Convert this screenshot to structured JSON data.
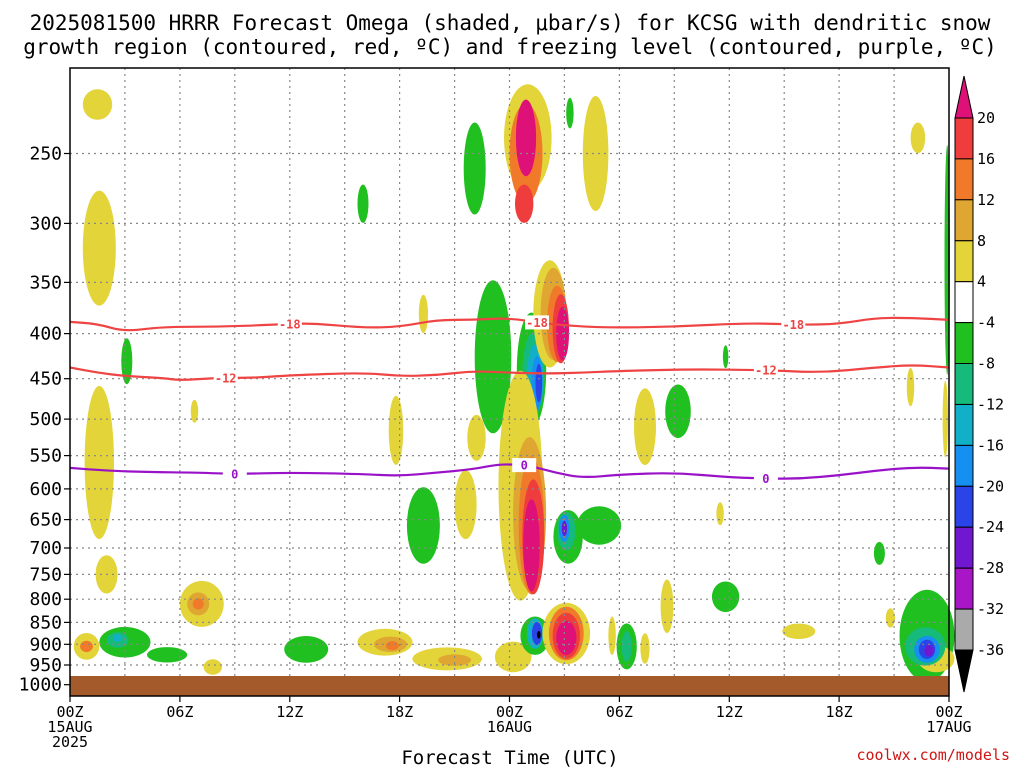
{
  "title": {
    "line1": "2025081500 HRRR Forecast Omega (shaded, μbar/s) for KCSG with dendritic snow",
    "line2": "growth region (contoured, red, ºC) and freezing level (contoured, purple, ºC)"
  },
  "credit": "coolwx.com/models",
  "colors": {
    "isotherm": "#ee4444",
    "freezing_level": "#9a12c8",
    "ground": "#a55a2c",
    "grid": "#888888"
  },
  "chart_data": {
    "type": "heatmap",
    "title": "2025081500 HRRR Forecast Omega (shaded, μbar/s) for KCSG with dendritic snow growth region (contoured, red, ºC) and freezing level (contoured, purple, ºC)",
    "xlabel": "Forecast Time (UTC)",
    "ylabel": "",
    "x_unit": "forecast hours from 2025-08-15 00Z",
    "y_unit": "hPa",
    "xlim": [
      0,
      48
    ],
    "ylim": [
      1030,
      200
    ],
    "y_scale": "log-pressure",
    "grid": true,
    "y_ticks": [
      250,
      300,
      350,
      400,
      450,
      500,
      550,
      600,
      650,
      700,
      750,
      800,
      850,
      900,
      950,
      1000
    ],
    "x_ticks": [
      {
        "hour": 0,
        "lines": [
          "00Z",
          "15AUG",
          "2025"
        ]
      },
      {
        "hour": 6,
        "lines": [
          "06Z"
        ]
      },
      {
        "hour": 12,
        "lines": [
          "12Z"
        ]
      },
      {
        "hour": 18,
        "lines": [
          "18Z"
        ]
      },
      {
        "hour": 24,
        "lines": [
          "00Z",
          "16AUG"
        ]
      },
      {
        "hour": 30,
        "lines": [
          "06Z"
        ]
      },
      {
        "hour": 36,
        "lines": [
          "12Z"
        ]
      },
      {
        "hour": 42,
        "lines": [
          "18Z"
        ]
      },
      {
        "hour": 48,
        "lines": [
          "00Z",
          "17AUG"
        ]
      }
    ],
    "colorbar": {
      "labels": [
        "20",
        "16",
        "12",
        "8",
        "4",
        "-4",
        "-8",
        "-12",
        "-16",
        "-20",
        "-24",
        "-28",
        "-32",
        "-36"
      ],
      "bins": [
        {
          "label": ">20",
          "color": "#dd1177"
        },
        {
          "label": "16-20",
          "color": "#ef3c3c"
        },
        {
          "label": "12-16",
          "color": "#f07a2a"
        },
        {
          "label": "8-12",
          "color": "#e0a632"
        },
        {
          "label": "4-8",
          "color": "#e3d43a"
        },
        {
          "label": "-4-4",
          "color": "#ffffff"
        },
        {
          "label": "-8--4",
          "color": "#21c021"
        },
        {
          "label": "-12--8",
          "color": "#16ba7a"
        },
        {
          "label": "-16--12",
          "color": "#12b0c8"
        },
        {
          "label": "-20--16",
          "color": "#1690f0"
        },
        {
          "label": "-24--20",
          "color": "#2a44e8"
        },
        {
          "label": "-28--24",
          "color": "#7018d0"
        },
        {
          "label": "-32--28",
          "color": "#a816c8"
        },
        {
          "label": "-36--32",
          "color": "#aaaaaa"
        },
        {
          "label": "<-36",
          "color": "#000000"
        }
      ]
    },
    "contours": [
      {
        "name": "-18",
        "level": -18,
        "color": "#ee4444",
        "label_hours": [
          12,
          25.5,
          39.5
        ],
        "points": [
          [
            0,
            388
          ],
          [
            1.5,
            390
          ],
          [
            3,
            398
          ],
          [
            5,
            393
          ],
          [
            8,
            393
          ],
          [
            11,
            391
          ],
          [
            13,
            389
          ],
          [
            16,
            394
          ],
          [
            18,
            393
          ],
          [
            20,
            386
          ],
          [
            22,
            386
          ],
          [
            24,
            384
          ],
          [
            26,
            390
          ],
          [
            29,
            394
          ],
          [
            33,
            393
          ],
          [
            37,
            389
          ],
          [
            40,
            391
          ],
          [
            42,
            390
          ],
          [
            44,
            384
          ],
          [
            46,
            384
          ],
          [
            48,
            386
          ]
        ]
      },
      {
        "name": "-12",
        "level": -12,
        "color": "#ee4444",
        "label_hours": [
          8.5,
          38
        ],
        "points": [
          [
            0,
            437
          ],
          [
            1.5,
            443
          ],
          [
            3,
            447
          ],
          [
            5,
            449
          ],
          [
            6,
            452
          ],
          [
            8,
            449
          ],
          [
            10,
            449
          ],
          [
            12,
            446
          ],
          [
            16,
            443
          ],
          [
            18,
            447
          ],
          [
            20,
            446
          ],
          [
            22,
            441
          ],
          [
            24,
            443
          ],
          [
            26,
            444
          ],
          [
            28,
            443
          ],
          [
            30,
            441
          ],
          [
            34,
            439
          ],
          [
            38,
            440
          ],
          [
            41,
            443
          ],
          [
            44,
            437
          ],
          [
            46,
            434
          ],
          [
            48,
            437
          ]
        ]
      },
      {
        "name": "0",
        "level": 0,
        "color": "#9a12c8",
        "label_hours": [
          9,
          24.8,
          38
        ],
        "points": [
          [
            0,
            568
          ],
          [
            2,
            572
          ],
          [
            4,
            574
          ],
          [
            7,
            575
          ],
          [
            9,
            577
          ],
          [
            12,
            575
          ],
          [
            16,
            577
          ],
          [
            18,
            580
          ],
          [
            20,
            575
          ],
          [
            22,
            570
          ],
          [
            23.5,
            562
          ],
          [
            25,
            564
          ],
          [
            26.5,
            575
          ],
          [
            28,
            583
          ],
          [
            30,
            578
          ],
          [
            33,
            575
          ],
          [
            36,
            582
          ],
          [
            38,
            584
          ],
          [
            40,
            584
          ],
          [
            42,
            579
          ],
          [
            44,
            572
          ],
          [
            46,
            567
          ],
          [
            48,
            569
          ]
        ]
      }
    ],
    "regions": [
      {
        "color": "#e3d43a",
        "hour": 1.5,
        "p": 220,
        "dh": 0.8,
        "dlogp": 0.04
      },
      {
        "color": "#e3d43a",
        "hour": 1.6,
        "p": 320,
        "dh": 0.9,
        "dlogp": 0.15
      },
      {
        "color": "#e3d43a",
        "hour": 1.6,
        "p": 560,
        "dh": 0.8,
        "dlogp": 0.2
      },
      {
        "color": "#e3d43a",
        "hour": 2.0,
        "p": 750,
        "dh": 0.6,
        "dlogp": 0.05
      },
      {
        "color": "#e3d43a",
        "hour": 0.9,
        "p": 905,
        "dh": 0.7,
        "dlogp": 0.035
      },
      {
        "color": "#f07a2a",
        "hour": 0.9,
        "p": 905,
        "dh": 0.35,
        "dlogp": 0.015
      },
      {
        "color": "#21c021",
        "hour": 3.0,
        "p": 895,
        "dh": 1.4,
        "dlogp": 0.04
      },
      {
        "color": "#16ba7a",
        "hour": 2.6,
        "p": 890,
        "dh": 0.6,
        "dlogp": 0.02
      },
      {
        "color": "#12b0c8",
        "hour": 2.6,
        "p": 885,
        "dh": 0.25,
        "dlogp": 0.01
      },
      {
        "color": "#21c021",
        "hour": 5.3,
        "p": 925,
        "dh": 1.1,
        "dlogp": 0.02
      },
      {
        "color": "#21c021",
        "hour": 3.1,
        "p": 430,
        "dh": 0.3,
        "dlogp": 0.06
      },
      {
        "color": "#e3d43a",
        "hour": 7.2,
        "p": 810,
        "dh": 1.2,
        "dlogp": 0.06
      },
      {
        "color": "#e0a632",
        "hour": 7.0,
        "p": 810,
        "dh": 0.6,
        "dlogp": 0.03
      },
      {
        "color": "#f07a2a",
        "hour": 7.0,
        "p": 810,
        "dh": 0.3,
        "dlogp": 0.015
      },
      {
        "color": "#e3d43a",
        "hour": 7.8,
        "p": 955,
        "dh": 0.5,
        "dlogp": 0.02
      },
      {
        "color": "#e3d43a",
        "hour": 6.8,
        "p": 490,
        "dh": 0.2,
        "dlogp": 0.03
      },
      {
        "color": "#21c021",
        "hour": 12.9,
        "p": 912,
        "dh": 1.2,
        "dlogp": 0.035
      },
      {
        "color": "#e3d43a",
        "hour": 17.2,
        "p": 895,
        "dh": 1.5,
        "dlogp": 0.035
      },
      {
        "color": "#e0a632",
        "hour": 17.5,
        "p": 900,
        "dh": 0.9,
        "dlogp": 0.02
      },
      {
        "color": "#f07a2a",
        "hour": 17.6,
        "p": 903,
        "dh": 0.35,
        "dlogp": 0.012
      },
      {
        "color": "#e3d43a",
        "hour": 20.6,
        "p": 935,
        "dh": 1.9,
        "dlogp": 0.03
      },
      {
        "color": "#e0a632",
        "hour": 21.0,
        "p": 938,
        "dh": 0.9,
        "dlogp": 0.015
      },
      {
        "color": "#e3d43a",
        "hour": 24.2,
        "p": 930,
        "dh": 1.0,
        "dlogp": 0.04
      },
      {
        "color": "#21c021",
        "hour": 19.3,
        "p": 660,
        "dh": 0.9,
        "dlogp": 0.1
      },
      {
        "color": "#21c021",
        "hour": 16.0,
        "p": 285,
        "dh": 0.3,
        "dlogp": 0.05
      },
      {
        "color": "#e3d43a",
        "hour": 17.8,
        "p": 515,
        "dh": 0.4,
        "dlogp": 0.09
      },
      {
        "color": "#e3d43a",
        "hour": 19.3,
        "p": 380,
        "dh": 0.25,
        "dlogp": 0.05
      },
      {
        "color": "#e3d43a",
        "hour": 21.6,
        "p": 625,
        "dh": 0.6,
        "dlogp": 0.09
      },
      {
        "color": "#21c021",
        "hour": 23.1,
        "p": 425,
        "dh": 1.0,
        "dlogp": 0.2
      },
      {
        "color": "#21c021",
        "hour": 22.1,
        "p": 260,
        "dh": 0.6,
        "dlogp": 0.12
      },
      {
        "color": "#e3d43a",
        "hour": 22.2,
        "p": 525,
        "dh": 0.5,
        "dlogp": 0.06
      },
      {
        "color": "#21c021",
        "hour": 25.2,
        "p": 440,
        "dh": 0.8,
        "dlogp": 0.15
      },
      {
        "color": "#16ba7a",
        "hour": 25.3,
        "p": 445,
        "dh": 0.6,
        "dlogp": 0.11
      },
      {
        "color": "#12b0c8",
        "hour": 25.4,
        "p": 450,
        "dh": 0.45,
        "dlogp": 0.09
      },
      {
        "color": "#1690f0",
        "hour": 25.5,
        "p": 455,
        "dh": 0.3,
        "dlogp": 0.07
      },
      {
        "color": "#2a44e8",
        "hour": 25.6,
        "p": 455,
        "dh": 0.18,
        "dlogp": 0.05
      },
      {
        "color": "#e3d43a",
        "hour": 24.6,
        "p": 595,
        "dh": 1.2,
        "dlogp": 0.3
      },
      {
        "color": "#e0a632",
        "hour": 25.1,
        "p": 640,
        "dh": 0.9,
        "dlogp": 0.2
      },
      {
        "color": "#f07a2a",
        "hour": 25.2,
        "p": 660,
        "dh": 0.7,
        "dlogp": 0.18
      },
      {
        "color": "#ef3c3c",
        "hour": 25.3,
        "p": 680,
        "dh": 0.6,
        "dlogp": 0.15
      },
      {
        "color": "#dd1177",
        "hour": 25.2,
        "p": 695,
        "dh": 0.45,
        "dlogp": 0.12
      },
      {
        "color": "#e3d43a",
        "hour": 26.2,
        "p": 380,
        "dh": 0.9,
        "dlogp": 0.14
      },
      {
        "color": "#e0a632",
        "hour": 26.4,
        "p": 380,
        "dh": 0.7,
        "dlogp": 0.12
      },
      {
        "color": "#f07a2a",
        "hour": 26.6,
        "p": 390,
        "dh": 0.55,
        "dlogp": 0.1
      },
      {
        "color": "#ef3c3c",
        "hour": 26.8,
        "p": 395,
        "dh": 0.45,
        "dlogp": 0.09
      },
      {
        "color": "#dd1177",
        "hour": 26.9,
        "p": 400,
        "dh": 0.35,
        "dlogp": 0.07
      },
      {
        "color": "#e3d43a",
        "hour": 25.0,
        "p": 240,
        "dh": 1.3,
        "dlogp": 0.14
      },
      {
        "color": "#f07a2a",
        "hour": 24.9,
        "p": 250,
        "dh": 0.9,
        "dlogp": 0.13
      },
      {
        "color": "#dd1177",
        "hour": 24.9,
        "p": 240,
        "dh": 0.55,
        "dlogp": 0.1
      },
      {
        "color": "#ef3c3c",
        "hour": 24.8,
        "p": 285,
        "dh": 0.5,
        "dlogp": 0.05
      },
      {
        "color": "#21c021",
        "hour": 25.4,
        "p": 880,
        "dh": 0.8,
        "dlogp": 0.05
      },
      {
        "color": "#12b0c8",
        "hour": 25.4,
        "p": 875,
        "dh": 0.45,
        "dlogp": 0.04
      },
      {
        "color": "#2a44e8",
        "hour": 25.5,
        "p": 875,
        "dh": 0.28,
        "dlogp": 0.03
      },
      {
        "color": "#000000",
        "hour": 25.6,
        "p": 878,
        "dh": 0.1,
        "dlogp": 0.01
      },
      {
        "color": "#21c021",
        "hour": 27.2,
        "p": 680,
        "dh": 0.8,
        "dlogp": 0.07
      },
      {
        "color": "#16ba7a",
        "hour": 27.1,
        "p": 670,
        "dh": 0.5,
        "dlogp": 0.05
      },
      {
        "color": "#1690f0",
        "hour": 27.0,
        "p": 665,
        "dh": 0.3,
        "dlogp": 0.035
      },
      {
        "color": "#7018d0",
        "hour": 27.0,
        "p": 665,
        "dh": 0.15,
        "dlogp": 0.02
      },
      {
        "color": "#21c021",
        "hour": 28.9,
        "p": 660,
        "dh": 1.2,
        "dlogp": 0.05
      },
      {
        "color": "#e3d43a",
        "hour": 28.7,
        "p": 250,
        "dh": 0.7,
        "dlogp": 0.15
      },
      {
        "color": "#21c021",
        "hour": 27.3,
        "p": 225,
        "dh": 0.2,
        "dlogp": 0.04
      },
      {
        "color": "#e3d43a",
        "hour": 27.1,
        "p": 875,
        "dh": 1.3,
        "dlogp": 0.08
      },
      {
        "color": "#f07a2a",
        "hour": 27.1,
        "p": 875,
        "dh": 0.95,
        "dlogp": 0.07
      },
      {
        "color": "#ef3c3c",
        "hour": 27.1,
        "p": 880,
        "dh": 0.75,
        "dlogp": 0.06
      },
      {
        "color": "#dd1177",
        "hour": 27.1,
        "p": 885,
        "dh": 0.55,
        "dlogp": 0.045
      },
      {
        "color": "#21c021",
        "hour": 30.4,
        "p": 905,
        "dh": 0.55,
        "dlogp": 0.06
      },
      {
        "color": "#16ba7a",
        "hour": 30.4,
        "p": 905,
        "dh": 0.28,
        "dlogp": 0.04
      },
      {
        "color": "#e3d43a",
        "hour": 29.6,
        "p": 880,
        "dh": 0.2,
        "dlogp": 0.05
      },
      {
        "color": "#e3d43a",
        "hour": 31.4,
        "p": 910,
        "dh": 0.25,
        "dlogp": 0.04
      },
      {
        "color": "#e3d43a",
        "hour": 32.6,
        "p": 815,
        "dh": 0.35,
        "dlogp": 0.07
      },
      {
        "color": "#e3d43a",
        "hour": 31.4,
        "p": 510,
        "dh": 0.6,
        "dlogp": 0.1
      },
      {
        "color": "#21c021",
        "hour": 33.2,
        "p": 490,
        "dh": 0.7,
        "dlogp": 0.07
      },
      {
        "color": "#21c021",
        "hour": 35.8,
        "p": 795,
        "dh": 0.75,
        "dlogp": 0.04
      },
      {
        "color": "#e3d43a",
        "hour": 35.5,
        "p": 640,
        "dh": 0.2,
        "dlogp": 0.03
      },
      {
        "color": "#21c021",
        "hour": 35.8,
        "p": 425,
        "dh": 0.15,
        "dlogp": 0.03
      },
      {
        "color": "#e3d43a",
        "hour": 39.8,
        "p": 870,
        "dh": 0.9,
        "dlogp": 0.02
      },
      {
        "color": "#21c021",
        "hour": 44.2,
        "p": 710,
        "dh": 0.3,
        "dlogp": 0.03
      },
      {
        "color": "#e3d43a",
        "hour": 44.8,
        "p": 840,
        "dh": 0.25,
        "dlogp": 0.025
      },
      {
        "color": "#e3d43a",
        "hour": 45.9,
        "p": 460,
        "dh": 0.2,
        "dlogp": 0.05
      },
      {
        "color": "#e3d43a",
        "hour": 46.3,
        "p": 240,
        "dh": 0.4,
        "dlogp": 0.04
      },
      {
        "color": "#21c021",
        "hour": 46.8,
        "p": 880,
        "dh": 1.5,
        "dlogp": 0.12
      },
      {
        "color": "#e3d43a",
        "hour": 47.3,
        "p": 935,
        "dh": 1.0,
        "dlogp": 0.035
      },
      {
        "color": "#16ba7a",
        "hour": 46.7,
        "p": 905,
        "dh": 1.1,
        "dlogp": 0.05
      },
      {
        "color": "#1690f0",
        "hour": 46.8,
        "p": 912,
        "dh": 0.7,
        "dlogp": 0.035
      },
      {
        "color": "#2a44e8",
        "hour": 46.8,
        "p": 912,
        "dh": 0.45,
        "dlogp": 0.025
      },
      {
        "color": "#7018d0",
        "hour": 46.9,
        "p": 915,
        "dh": 0.25,
        "dlogp": 0.015
      },
      {
        "color": "#21c021",
        "hour": 47.9,
        "p": 330,
        "dh": 0.15,
        "dlogp": 0.3
      },
      {
        "color": "#e3d43a",
        "hour": 47.8,
        "p": 500,
        "dh": 0.15,
        "dlogp": 0.1
      }
    ]
  }
}
